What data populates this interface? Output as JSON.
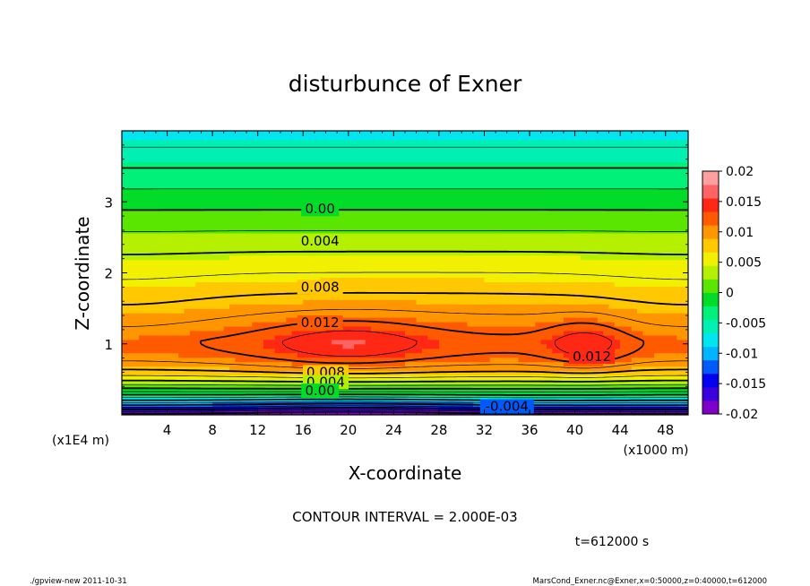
{
  "chart_data": {
    "type": "contour",
    "title": "disturbunce of Exner",
    "xlabel": "X-coordinate",
    "ylabel": "Z-coordinate",
    "x_unit": "(x1000 m)",
    "y_unit": "(x1E4 m)",
    "xlim": [
      0,
      50
    ],
    "ylim": [
      0,
      4
    ],
    "x_ticks": [
      4,
      8,
      12,
      16,
      20,
      24,
      28,
      32,
      36,
      40,
      44,
      48
    ],
    "y_ticks": [
      1,
      2,
      3
    ],
    "colorbar": {
      "min": -0.02,
      "max": 0.02,
      "ticks": [
        "0.02",
        "0.015",
        "0.01",
        "0.005",
        "0",
        "-0.005",
        "-0.01",
        "-0.015",
        "-0.02"
      ]
    },
    "contour_labels": [
      {
        "text": "0.00",
        "x": 17.5,
        "z": 2.9
      },
      {
        "text": "0.004",
        "x": 17.5,
        "z": 2.45
      },
      {
        "text": "0.008",
        "x": 17.5,
        "z": 1.8
      },
      {
        "text": "0.012",
        "x": 17.5,
        "z": 1.3
      },
      {
        "text": "0.012",
        "x": 41.5,
        "z": 0.82
      },
      {
        "text": "0.008",
        "x": 18,
        "z": 0.6
      },
      {
        "text": "0.004",
        "x": 18,
        "z": 0.46
      },
      {
        "text": "0.00",
        "x": 17.5,
        "z": 0.34
      },
      {
        "text": "-0.004",
        "x": 34,
        "z": 0.12
      }
    ],
    "contour_interval_text": "CONTOUR INTERVAL = 2.000E-03",
    "time_text": "t=612000 s"
  },
  "footer": {
    "left": "./gpview-new   2011-10-31",
    "right": "MarsCond_Exner.nc@Exner,x=0:50000,z=0:40000,t=612000"
  },
  "colors": {
    "band_scale": [
      "#7f00c8",
      "#3c00dc",
      "#0000f0",
      "#005afa",
      "#00b4ff",
      "#00e6f0",
      "#00f0b4",
      "#00f07a",
      "#00dc28",
      "#5ae600",
      "#b4f000",
      "#f0f000",
      "#ffc800",
      "#ff9600",
      "#ff5a00",
      "#ff2814",
      "#ff6464",
      "#ffa0a0"
    ]
  }
}
